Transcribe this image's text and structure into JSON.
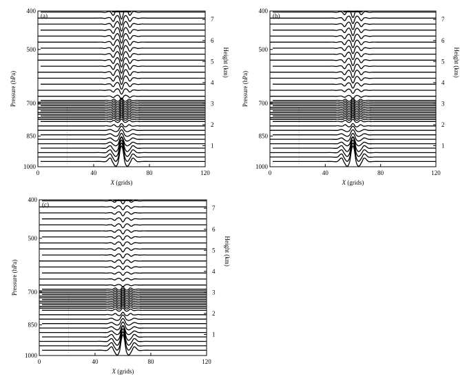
{
  "chart_data": [
    {
      "type": "line",
      "panel_label": "(a)",
      "xlabel_italic": "X",
      "xlabel_rest": " (grids)",
      "ylabel_left": "Pressure (hPa)",
      "ylabel_right": "Height (km)",
      "x_ticks": [
        0,
        40,
        80,
        120
      ],
      "xlim": [
        0,
        120
      ],
      "pressure_ticks": [
        400,
        500,
        700,
        850,
        1000
      ],
      "height_ticks": [
        1,
        2,
        3,
        4,
        5,
        6,
        7
      ],
      "ylim_height_km": [
        0,
        7.4
      ],
      "disturbance_center_x": 60,
      "upper_amplitude": "strong"
    },
    {
      "type": "line",
      "panel_label": "(b)",
      "xlabel_italic": "X",
      "xlabel_rest": " (grids)",
      "ylabel_left": "Pressure (hPa)",
      "ylabel_right": "Height (km)",
      "x_ticks": [
        0,
        40,
        80,
        120
      ],
      "xlim": [
        0,
        120
      ],
      "pressure_ticks": [
        400,
        500,
        700,
        850,
        1000
      ],
      "height_ticks": [
        1,
        2,
        3,
        4,
        5,
        6,
        7
      ],
      "ylim_height_km": [
        0,
        7.4
      ],
      "disturbance_center_x": 60,
      "upper_amplitude": "medium"
    },
    {
      "type": "line",
      "panel_label": "(c)",
      "xlabel_italic": "X",
      "xlabel_rest": " (grids)",
      "ylabel_left": "Pressure (hPa)",
      "ylabel_right": "Height (km)",
      "x_ticks": [
        0,
        40,
        80,
        120
      ],
      "xlim": [
        0,
        120
      ],
      "pressure_ticks": [
        400,
        500,
        700,
        850,
        1000
      ],
      "height_ticks": [
        1,
        2,
        3,
        4,
        5,
        6,
        7
      ],
      "ylim_height_km": [
        0,
        7.4
      ],
      "disturbance_center_x": 60,
      "upper_amplitude": "weak"
    }
  ]
}
